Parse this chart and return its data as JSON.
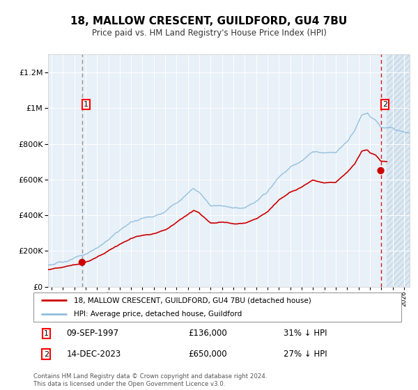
{
  "title": "18, MALLOW CRESCENT, GUILDFORD, GU4 7BU",
  "subtitle": "Price paid vs. HM Land Registry's House Price Index (HPI)",
  "sale1_label": "09-SEP-1997",
  "sale1_price": 136000,
  "sale1_hpi_note": "31% ↓ HPI",
  "sale2_label": "14-DEC-2023",
  "sale2_price": 650000,
  "sale2_hpi_note": "27% ↓ HPI",
  "legend_line1": "18, MALLOW CRESCENT, GUILDFORD, GU4 7BU (detached house)",
  "legend_line2": "HPI: Average price, detached house, Guildford",
  "copyright_text": "Contains HM Land Registry data © Crown copyright and database right 2024.\nThis data is licensed under the Open Government Licence v3.0.",
  "sale_color": "#cc0000",
  "hpi_color": "#90bedd",
  "plot_bg": "#e8f0f8",
  "ylim": [
    0,
    1300000
  ],
  "xlim_start": 1994.7,
  "xlim_end": 2026.5,
  "sale1_year": 1997.69,
  "sale2_year": 2023.96,
  "hatch_start": 2024.5
}
